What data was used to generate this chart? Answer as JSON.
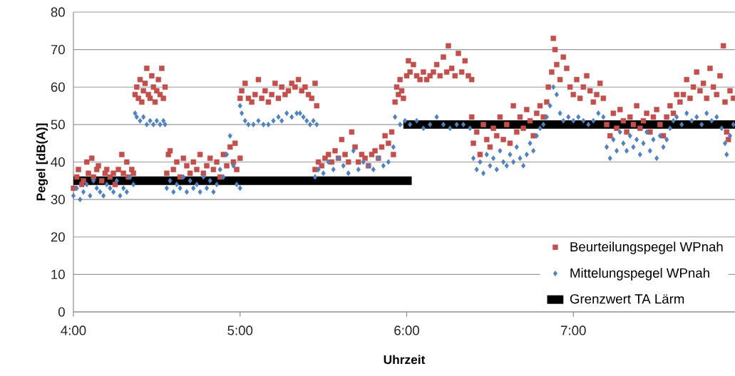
{
  "chart_data": {
    "type": "scatter",
    "xlabel": "Uhrzeit",
    "ylabel": "Pegel [dB(A)]",
    "xlim": [
      4,
      7.97
    ],
    "ylim": [
      0,
      80
    ],
    "xticks": [
      {
        "value": 4,
        "label": "4:00"
      },
      {
        "value": 5,
        "label": "5:00"
      },
      {
        "value": 6,
        "label": "6:00"
      },
      {
        "value": 7,
        "label": "7:00"
      }
    ],
    "yticks": [
      0,
      10,
      20,
      30,
      40,
      50,
      60,
      70,
      80
    ],
    "grid": "y",
    "legend": "bottom right",
    "series": [
      {
        "name": "Beurteilungspegel WPnah",
        "marker": "square",
        "color": "#c0504d",
        "x": [
          4.0,
          4.02,
          4.03,
          4.05,
          4.06,
          4.08,
          4.09,
          4.11,
          4.12,
          4.14,
          4.15,
          4.17,
          4.19,
          4.2,
          4.22,
          4.24,
          4.25,
          4.27,
          4.29,
          4.3,
          4.32,
          4.33,
          4.35,
          4.36,
          4.37,
          4.38,
          4.39,
          4.4,
          4.41,
          4.42,
          4.43,
          4.44,
          4.45,
          4.46,
          4.47,
          4.48,
          4.49,
          4.5,
          4.51,
          4.52,
          4.53,
          4.54,
          4.55,
          4.56,
          4.57,
          4.58,
          4.6,
          4.62,
          4.64,
          4.66,
          4.68,
          4.7,
          4.72,
          4.74,
          4.76,
          4.78,
          4.8,
          4.82,
          4.84,
          4.86,
          4.88,
          4.9,
          4.92,
          4.94,
          4.96,
          4.97,
          4.98,
          5.0,
          5.0,
          5.01,
          5.03,
          5.05,
          5.07,
          5.09,
          5.11,
          5.13,
          5.15,
          5.17,
          5.19,
          5.21,
          5.23,
          5.25,
          5.27,
          5.29,
          5.31,
          5.33,
          5.35,
          5.37,
          5.39,
          5.41,
          5.43,
          5.45,
          5.46,
          5.45,
          5.47,
          5.49,
          5.51,
          5.53,
          5.55,
          5.57,
          5.59,
          5.61,
          5.63,
          5.65,
          5.67,
          5.69,
          5.71,
          5.73,
          5.75,
          5.77,
          5.79,
          5.81,
          5.83,
          5.85,
          5.87,
          5.89,
          5.91,
          5.92,
          5.93,
          5.94,
          5.95,
          5.96,
          5.97,
          5.98,
          6.0,
          6.01,
          6.02,
          6.04,
          6.06,
          6.08,
          6.1,
          6.12,
          6.14,
          6.16,
          6.18,
          6.2,
          6.22,
          6.24,
          6.25,
          6.27,
          6.29,
          6.31,
          6.33,
          6.35,
          6.37,
          6.39,
          6.39,
          6.4,
          6.42,
          6.44,
          6.46,
          6.48,
          6.5,
          6.52,
          6.54,
          6.56,
          6.58,
          6.6,
          6.62,
          6.64,
          6.66,
          6.68,
          6.7,
          6.72,
          6.74,
          6.76,
          6.78,
          6.8,
          6.82,
          6.84,
          6.85,
          6.87,
          6.88,
          6.89,
          6.9,
          6.92,
          6.94,
          6.96,
          6.98,
          7.0,
          7.02,
          7.04,
          7.06,
          7.08,
          7.1,
          7.12,
          7.14,
          7.16,
          7.18,
          7.2,
          7.22,
          7.24,
          7.26,
          7.28,
          7.3,
          7.32,
          7.34,
          7.36,
          7.38,
          7.4,
          7.42,
          7.44,
          7.46,
          7.48,
          7.5,
          7.52,
          7.54,
          7.56,
          7.58,
          7.6,
          7.62,
          7.64,
          7.66,
          7.68,
          7.7,
          7.72,
          7.74,
          7.76,
          7.78,
          7.8,
          7.82,
          7.84,
          7.86,
          7.88,
          7.9,
          7.91,
          7.92,
          7.93,
          7.94,
          7.96
        ],
        "values": [
          33,
          36,
          38,
          34,
          35,
          40,
          37,
          41,
          36,
          38,
          39,
          35,
          37,
          38,
          36,
          37,
          34,
          38,
          42,
          37,
          40,
          36,
          38,
          37,
          58,
          60,
          57,
          62,
          56,
          59,
          61,
          65,
          58,
          57,
          63,
          60,
          56,
          59,
          62,
          58,
          65,
          57,
          60,
          37,
          42,
          43,
          38,
          40,
          36,
          41,
          39,
          37,
          40,
          38,
          42,
          37,
          39,
          41,
          38,
          40,
          36,
          42,
          39,
          44,
          40,
          45,
          38,
          41,
          57,
          59,
          61,
          57,
          56,
          58,
          62,
          57,
          59,
          56,
          58,
          61,
          57,
          60,
          58,
          59,
          61,
          60,
          62,
          59,
          60,
          58,
          57,
          61,
          55,
          38,
          40,
          39,
          41,
          42,
          40,
          43,
          41,
          46,
          42,
          40,
          48,
          44,
          40,
          42,
          41,
          39,
          42,
          43,
          41,
          44,
          47,
          45,
          48,
          42,
          56,
          60,
          58,
          62,
          59,
          57,
          63,
          67,
          64,
          66,
          63,
          62,
          64,
          62,
          63,
          64,
          66,
          63,
          68,
          64,
          71,
          65,
          63,
          69,
          64,
          67,
          63,
          62,
          52,
          45,
          48,
          42,
          50,
          46,
          44,
          49,
          47,
          52,
          46,
          50,
          45,
          55,
          48,
          52,
          49,
          54,
          51,
          47,
          53,
          55,
          52,
          56,
          60,
          64,
          73,
          70,
          66,
          62,
          68,
          65,
          60,
          58,
          62,
          57,
          60,
          63,
          59,
          56,
          58,
          61,
          57,
          50,
          47,
          53,
          49,
          54,
          51,
          48,
          52,
          50,
          55,
          49,
          51,
          53,
          48,
          52,
          54,
          50,
          47,
          52,
          55,
          53,
          58,
          56,
          58,
          62,
          57,
          60,
          64,
          59,
          61,
          57,
          65,
          60,
          58,
          63,
          71,
          56,
          48,
          46,
          59,
          57
        ]
      },
      {
        "name": "Mittelungspegel WPnah",
        "marker": "diamond",
        "color": "#4f81bd",
        "x": [
          4.0,
          4.02,
          4.04,
          4.06,
          4.08,
          4.1,
          4.12,
          4.14,
          4.16,
          4.18,
          4.2,
          4.22,
          4.24,
          4.26,
          4.28,
          4.3,
          4.32,
          4.34,
          4.36,
          4.37,
          4.38,
          4.4,
          4.42,
          4.44,
          4.46,
          4.48,
          4.5,
          4.52,
          4.54,
          4.55,
          4.56,
          4.58,
          4.6,
          4.62,
          4.64,
          4.66,
          4.68,
          4.7,
          4.72,
          4.74,
          4.76,
          4.78,
          4.8,
          4.82,
          4.84,
          4.86,
          4.88,
          4.9,
          4.92,
          4.94,
          4.96,
          4.98,
          5.0,
          5.0,
          5.01,
          5.03,
          5.05,
          5.08,
          5.11,
          5.14,
          5.17,
          5.2,
          5.23,
          5.25,
          5.28,
          5.31,
          5.34,
          5.36,
          5.38,
          5.4,
          5.42,
          5.44,
          5.46,
          5.45,
          5.47,
          5.5,
          5.53,
          5.56,
          5.59,
          5.62,
          5.65,
          5.68,
          5.71,
          5.74,
          5.77,
          5.8,
          5.83,
          5.86,
          5.89,
          5.92,
          5.93,
          5.96,
          5.99,
          6.02,
          6.06,
          6.1,
          6.14,
          6.18,
          6.22,
          6.26,
          6.3,
          6.34,
          6.38,
          6.4,
          6.42,
          6.44,
          6.46,
          6.48,
          6.5,
          6.52,
          6.54,
          6.56,
          6.58,
          6.6,
          6.62,
          6.64,
          6.66,
          6.68,
          6.7,
          6.72,
          6.74,
          6.76,
          6.78,
          6.8,
          6.82,
          6.84,
          6.86,
          6.88,
          6.9,
          6.92,
          6.94,
          6.97,
          7.0,
          7.03,
          7.06,
          7.09,
          7.12,
          7.15,
          7.18,
          7.2,
          7.22,
          7.24,
          7.26,
          7.28,
          7.3,
          7.32,
          7.34,
          7.36,
          7.38,
          7.4,
          7.42,
          7.44,
          7.46,
          7.48,
          7.5,
          7.52,
          7.54,
          7.56,
          7.58,
          7.6,
          7.62,
          7.65,
          7.68,
          7.71,
          7.74,
          7.77,
          7.8,
          7.83,
          7.86,
          7.89,
          7.91,
          7.92,
          7.94,
          7.96
        ],
        "values": [
          31,
          33,
          30,
          32,
          34,
          31,
          35,
          33,
          32,
          31,
          34,
          33,
          32,
          35,
          31,
          33,
          32,
          36,
          34,
          53,
          52,
          51,
          52,
          50,
          51,
          50,
          51,
          50,
          51,
          50,
          33,
          35,
          32,
          34,
          33,
          36,
          32,
          35,
          33,
          34,
          32,
          36,
          33,
          35,
          32,
          34,
          38,
          36,
          42,
          47,
          39,
          34,
          33,
          55,
          53,
          51,
          50,
          50,
          51,
          50,
          50,
          51,
          52,
          51,
          53,
          52,
          53,
          53,
          52,
          51,
          50,
          51,
          50,
          36,
          38,
          37,
          40,
          38,
          41,
          39,
          37,
          43,
          38,
          40,
          39,
          38,
          41,
          39,
          40,
          44,
          52,
          50,
          51,
          50,
          51,
          49,
          50,
          52,
          50,
          49,
          50,
          50,
          49,
          41,
          38,
          40,
          37,
          42,
          39,
          41,
          38,
          43,
          40,
          39,
          42,
          40,
          44,
          41,
          39,
          42,
          45,
          43,
          47,
          49,
          50,
          52,
          55,
          60,
          58,
          53,
          51,
          52,
          51,
          52,
          51,
          50,
          51,
          53,
          52,
          44,
          41,
          46,
          43,
          48,
          45,
          43,
          47,
          44,
          46,
          42,
          45,
          48,
          43,
          46,
          41,
          47,
          44,
          46,
          49,
          51,
          52,
          50,
          53,
          51,
          52,
          50,
          53,
          51,
          52,
          49,
          45,
          42,
          47,
          50
        ]
      },
      {
        "name": "Grenzwert TA Lärm",
        "type": "line",
        "color": "#000000",
        "x": [
          4.0,
          6.03,
          6.0,
          5.98,
          7.97
        ],
        "values": [
          35,
          35,
          null,
          50,
          50
        ]
      }
    ]
  }
}
